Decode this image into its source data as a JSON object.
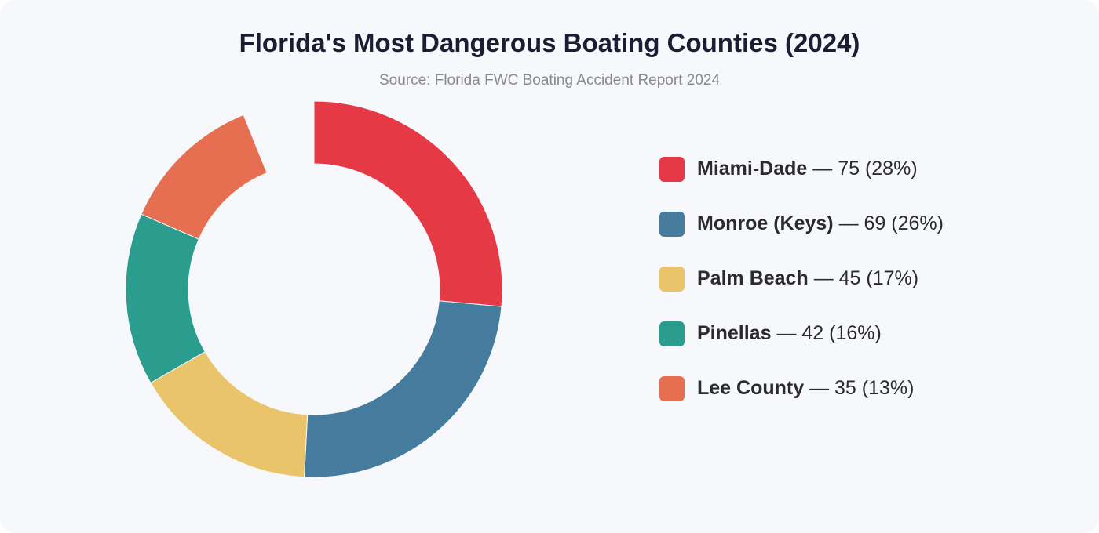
{
  "chart_data": {
    "type": "pie",
    "variant": "donut",
    "title": "Florida's Most Dangerous Boating Counties (2024)",
    "subtitle": "Source: Florida FWC Boating Accident Report 2024",
    "legend_position": "right",
    "slices": [
      {
        "name": "Miami-Dade",
        "value": 75,
        "percent_label": "28%",
        "color": "#e63946"
      },
      {
        "name": "Monroe (Keys)",
        "value": 69,
        "percent_label": "26%",
        "color": "#457b9d"
      },
      {
        "name": "Palm Beach",
        "value": 45,
        "percent_label": "17%",
        "color": "#e9c46a"
      },
      {
        "name": "Pinellas",
        "value": 42,
        "percent_label": "16%",
        "color": "#2a9d8f"
      },
      {
        "name": "Lee County",
        "value": 35,
        "percent_label": "13%",
        "color": "#e76f51"
      }
    ],
    "legend": [
      {
        "name": "Miami-Dade",
        "detail": " — 75 (28%)"
      },
      {
        "name": "Monroe (Keys)",
        "detail": " — 69 (26%)"
      },
      {
        "name": "Palm Beach",
        "detail": " — 45 (17%)"
      },
      {
        "name": "Pinellas",
        "detail": " — 42 (16%)"
      },
      {
        "name": "Lee County",
        "detail": " — 35 (13%)"
      }
    ]
  }
}
